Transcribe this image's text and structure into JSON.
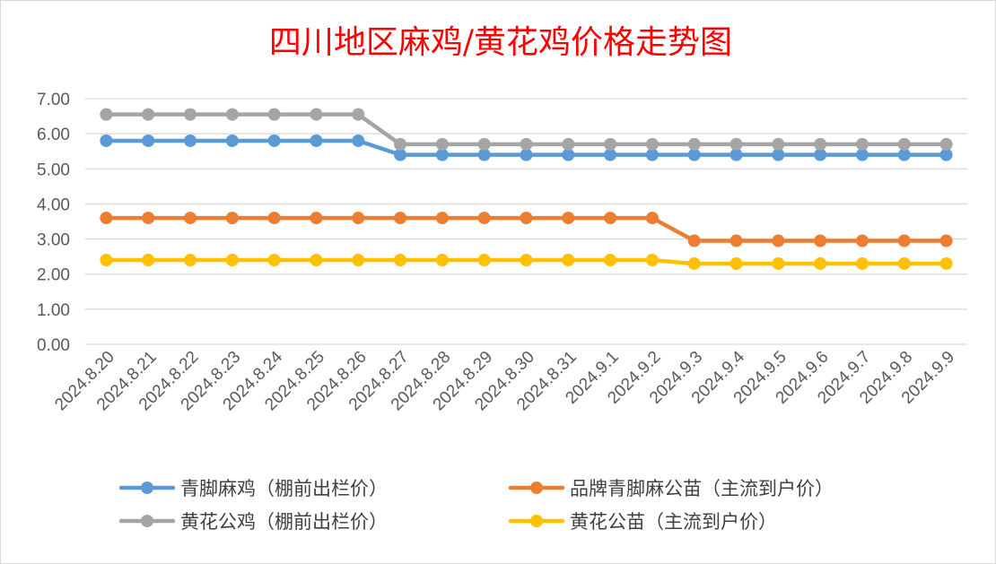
{
  "chart_data": {
    "type": "line",
    "title": "四川地区麻鸡/黄花鸡价格走势图",
    "xlabel": "",
    "ylabel": "",
    "ylim": [
      0,
      7
    ],
    "yticks": [
      "0.00",
      "1.00",
      "2.00",
      "3.00",
      "4.00",
      "5.00",
      "6.00",
      "7.00"
    ],
    "grid": true,
    "legend_position": "bottom",
    "categories": [
      "2024.8.20",
      "2024.8.21",
      "2024.8.22",
      "2024.8.23",
      "2024.8.24",
      "2024.8.25",
      "2024.8.26",
      "2024.8.27",
      "2024.8.28",
      "2024.8.29",
      "2024.8.30",
      "2024.8.31",
      "2024.9.1",
      "2024.9.2",
      "2024.9.3",
      "2024.9.4",
      "2024.9.5",
      "2024.9.6",
      "2024.9.7",
      "2024.9.8",
      "2024.9.9"
    ],
    "series": [
      {
        "name": "青脚麻鸡（棚前出栏价）",
        "color": "#5b9bd5",
        "values": [
          5.8,
          5.8,
          5.8,
          5.8,
          5.8,
          5.8,
          5.8,
          5.4,
          5.4,
          5.4,
          5.4,
          5.4,
          5.4,
          5.4,
          5.4,
          5.4,
          5.4,
          5.4,
          5.4,
          5.4,
          5.4
        ]
      },
      {
        "name": "品牌青脚麻公苗（主流到户价）",
        "color": "#ed7d31",
        "values": [
          3.6,
          3.6,
          3.6,
          3.6,
          3.6,
          3.6,
          3.6,
          3.6,
          3.6,
          3.6,
          3.6,
          3.6,
          3.6,
          3.6,
          2.95,
          2.95,
          2.95,
          2.95,
          2.95,
          2.95,
          2.95
        ]
      },
      {
        "name": "黄花公鸡（棚前出栏价）",
        "color": "#a5a5a5",
        "values": [
          6.55,
          6.55,
          6.55,
          6.55,
          6.55,
          6.55,
          6.55,
          5.7,
          5.7,
          5.7,
          5.7,
          5.7,
          5.7,
          5.7,
          5.7,
          5.7,
          5.7,
          5.7,
          5.7,
          5.7,
          5.7
        ]
      },
      {
        "name": "黄花公苗（主流到户价）",
        "color": "#ffc000",
        "values": [
          2.4,
          2.4,
          2.4,
          2.4,
          2.4,
          2.4,
          2.4,
          2.4,
          2.4,
          2.4,
          2.4,
          2.4,
          2.4,
          2.4,
          2.3,
          2.3,
          2.3,
          2.3,
          2.3,
          2.3,
          2.3
        ]
      }
    ]
  }
}
